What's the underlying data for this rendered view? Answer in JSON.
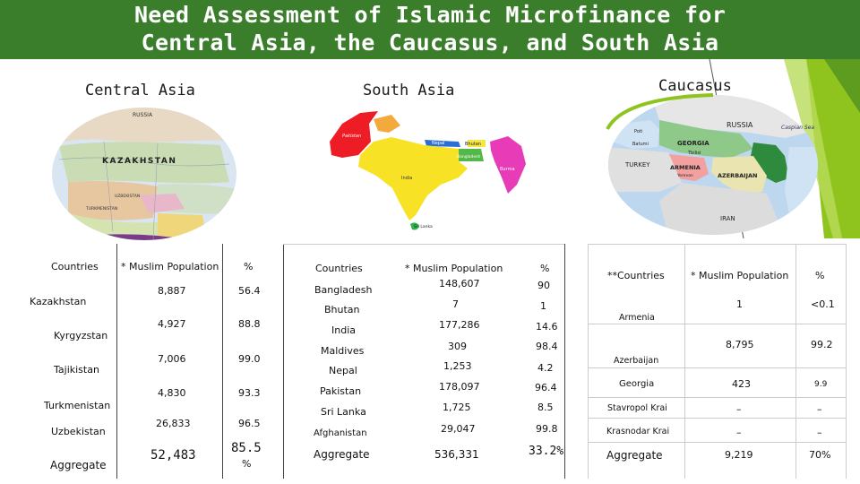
{
  "title": {
    "line1": "Need Assessment of Islamic Microfinance for",
    "line2": "Central Asia, the Caucasus, and South Asia"
  },
  "colors": {
    "title_bar": "#3a7d2b",
    "accent_green": "#8fc41f"
  },
  "sections": {
    "central_asia": "Central Asia",
    "south_asia": "South Asia",
    "caucasus": "Caucasus"
  },
  "maps": {
    "central_asia": {
      "labels": [
        "RUSSIA",
        "KAZAKHSTAN",
        "UZBEKISTAN",
        "TURKMENISTAN"
      ]
    },
    "south_asia": {
      "labels": [
        "Pakistan",
        "Nepal",
        "Bhutan",
        "Bangladesh",
        "India",
        "Burma",
        "Sri Lanka"
      ]
    },
    "caucasus": {
      "labels": [
        "RUSSIA",
        "Caspian Sea",
        "Poti",
        "GEORGIA",
        "Batumi",
        "Tbilisi",
        "TURKEY",
        "ARMENIA",
        "Yerevan",
        "AZERBAIJAN",
        "IRAN"
      ]
    }
  },
  "central_asia_table": {
    "headers": {
      "countries": "Countries",
      "population": "* Muslim Population",
      "pct": "%"
    },
    "rows": [
      {
        "country": "Kazakhstan",
        "population": "8,887",
        "pct": "56.4"
      },
      {
        "country": "Kyrgyzstan",
        "population": "4,927",
        "pct": "88.8"
      },
      {
        "country": "Tajikistan",
        "population": "7,006",
        "pct": "99.0"
      },
      {
        "country": "Turkmenistan",
        "population": "4,830",
        "pct": "93.3"
      },
      {
        "country": "Uzbekistan",
        "population": "26,833",
        "pct": "96.5"
      }
    ],
    "aggregate": {
      "label": "Aggregate",
      "population": "52,483",
      "pct": "85.5",
      "pct_unit": "%"
    }
  },
  "south_asia_table": {
    "headers": {
      "countries": "Countries",
      "population": "* Muslim Population",
      "pct": "%"
    },
    "rows": [
      {
        "country": "Bangladesh",
        "population": "148,607",
        "pct": "90"
      },
      {
        "country": "Bhutan",
        "population": "7",
        "pct": "1"
      },
      {
        "country": "India",
        "population": "177,286",
        "pct": "14.6"
      },
      {
        "country": "Maldives",
        "population": "309",
        "pct": "98.4"
      },
      {
        "country": "Nepal",
        "population": "1,253",
        "pct": "4.2"
      },
      {
        "country": "Pakistan",
        "population": "178,097",
        "pct": "96.4"
      },
      {
        "country": "Sri Lanka",
        "population": "1,725",
        "pct": "8.5"
      },
      {
        "country": "Afghanistan",
        "population": "29,047",
        "pct": "99.8"
      }
    ],
    "aggregate": {
      "label": "Aggregate",
      "population": "536,331",
      "pct": "33.2%"
    }
  },
  "caucasus_table": {
    "headers": {
      "countries": "**Countries",
      "population": "* Muslim Population",
      "pct": "%"
    },
    "rows": [
      {
        "country": "Armenia",
        "population": "1",
        "pct": "<0.1"
      },
      {
        "country": "Azerbaijan",
        "population": "8,795",
        "pct": "99.2"
      },
      {
        "country": "Georgia",
        "population": "423",
        "pct": "9.9"
      },
      {
        "country": "Stavropol Krai",
        "population": "–",
        "pct": "–"
      },
      {
        "country": "Krasnodar Krai",
        "population": "–",
        "pct": "–"
      }
    ],
    "aggregate": {
      "label": "Aggregate",
      "population": "9,219",
      "pct": "70%"
    }
  }
}
